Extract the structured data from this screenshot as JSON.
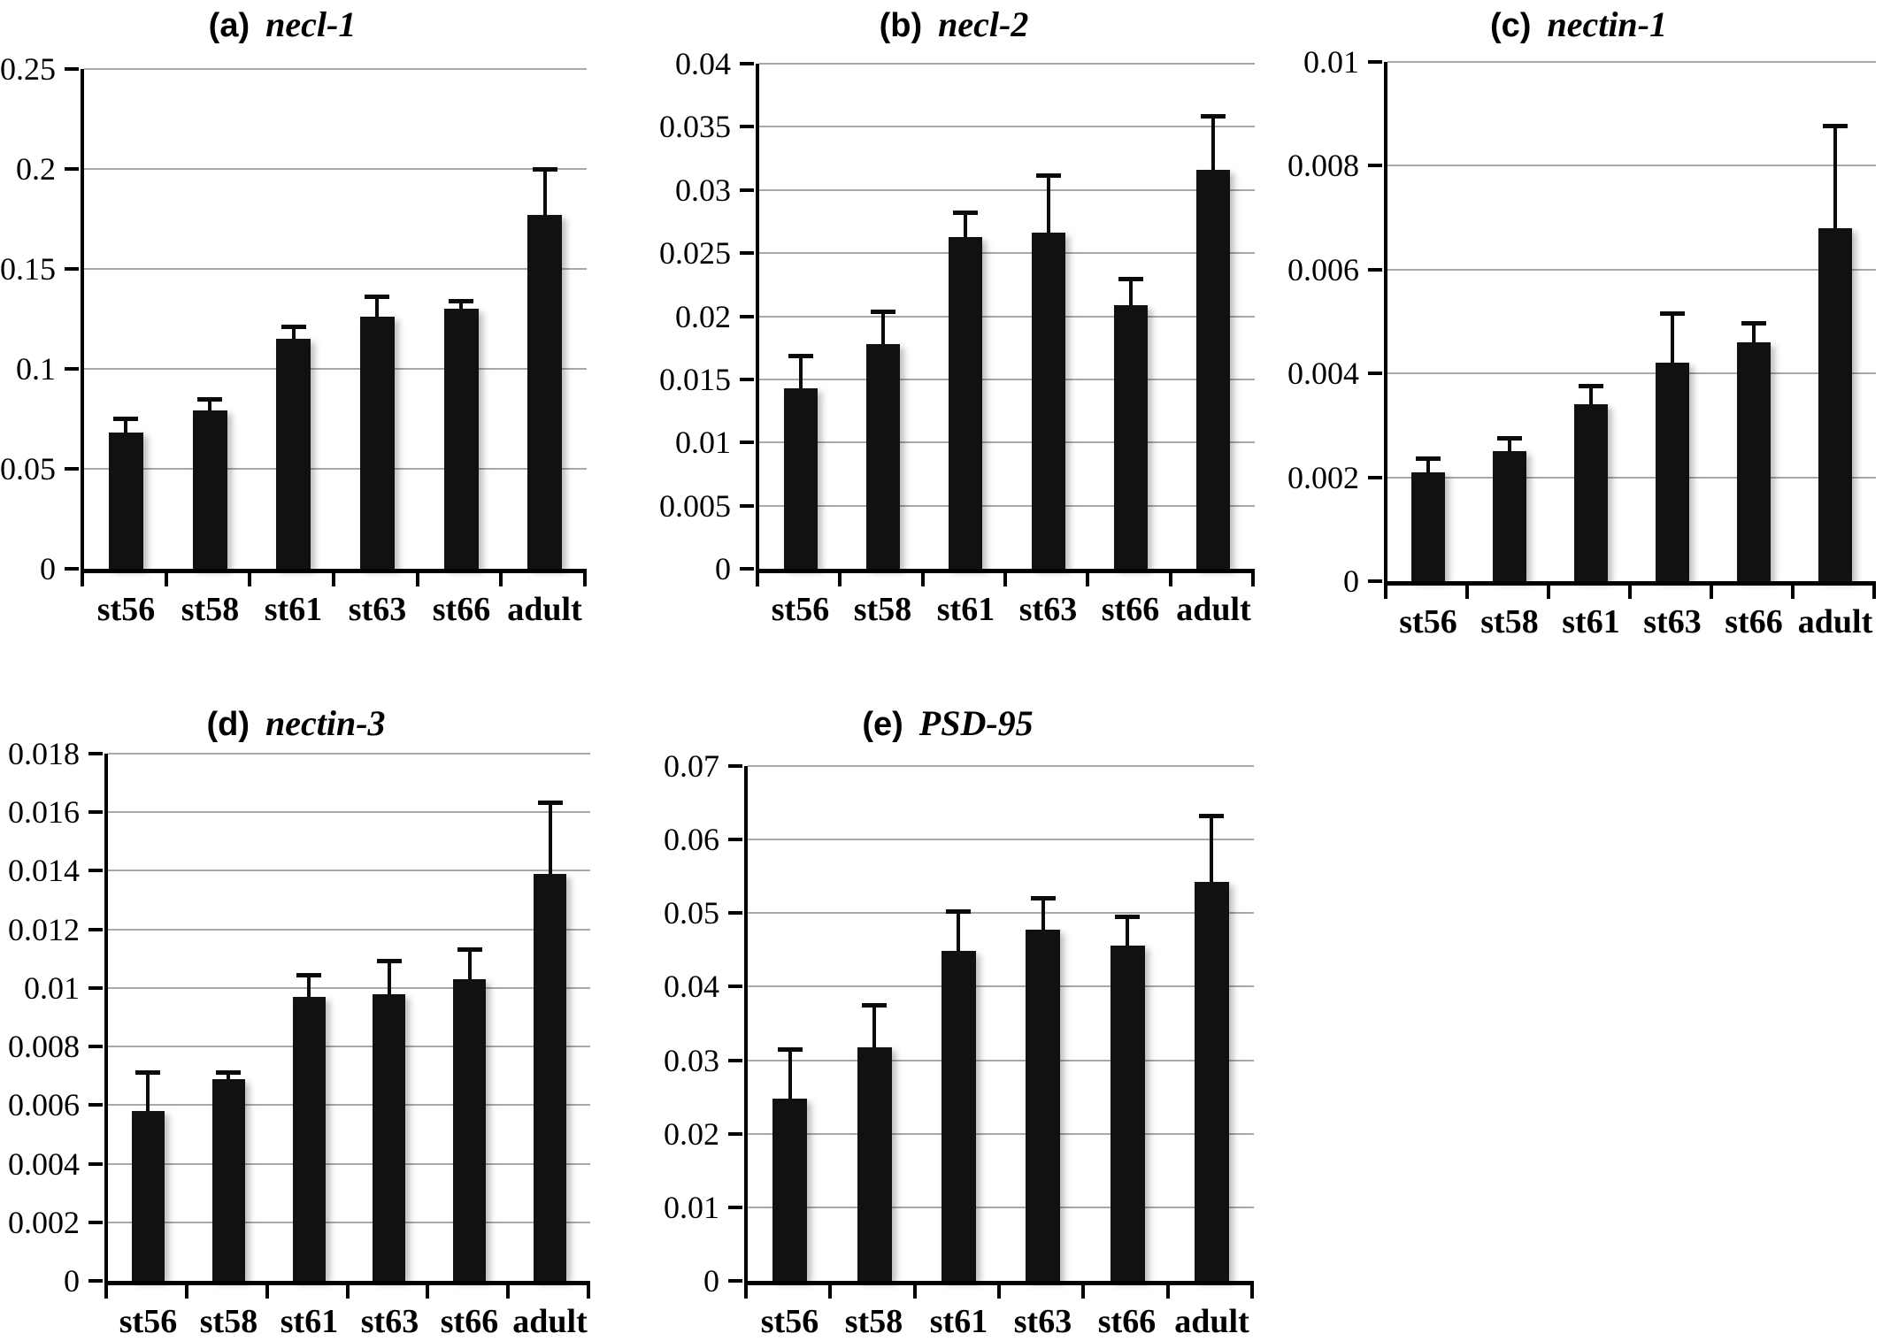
{
  "figure": {
    "style": {
      "bar_color": "#111111",
      "gridline_color": "#a8a8a8",
      "axis_color": "#000000",
      "text_color": "#000000"
    }
  },
  "chart_data": [
    {
      "panel": "(a)",
      "title": "necl-1",
      "type": "bar",
      "categories": [
        "st56",
        "st58",
        "st61",
        "st63",
        "st66",
        "adult"
      ],
      "values": [
        0.068,
        0.079,
        0.115,
        0.126,
        0.13,
        0.177
      ],
      "error_top": [
        0.076,
        0.086,
        0.122,
        0.137,
        0.135,
        0.201
      ],
      "ylim": [
        0,
        0.25
      ],
      "y_step": 0.05,
      "y_ticks": [
        "0.25",
        "0.2",
        "0.15",
        "0.1",
        "0.05",
        "0"
      ],
      "xlabel": "",
      "ylabel": "",
      "grid": true,
      "legend": "none"
    },
    {
      "panel": "(b)",
      "title": "necl-2",
      "type": "bar",
      "categories": [
        "st56",
        "st58",
        "st61",
        "st63",
        "st66",
        "adult"
      ],
      "values": [
        0.0143,
        0.0178,
        0.0263,
        0.0266,
        0.0209,
        0.0316
      ],
      "error_top": [
        0.017,
        0.0205,
        0.0284,
        0.0313,
        0.0231,
        0.036
      ],
      "ylim": [
        0,
        0.04
      ],
      "y_step": 0.005,
      "y_ticks": [
        "0.04",
        "0.035",
        "0.03",
        "0.025",
        "0.02",
        "0.015",
        "0.01",
        "0.005",
        "0"
      ],
      "xlabel": "",
      "ylabel": "",
      "grid": true,
      "legend": "none"
    },
    {
      "panel": "(c)",
      "title": "nectin-1",
      "type": "bar",
      "categories": [
        "st56",
        "st58",
        "st61",
        "st63",
        "st66",
        "adult"
      ],
      "values": [
        0.0021,
        0.0025,
        0.0034,
        0.0042,
        0.0046,
        0.0068
      ],
      "error_top": [
        0.0024,
        0.0028,
        0.0038,
        0.0052,
        0.005,
        0.0088
      ],
      "ylim": [
        0,
        0.01
      ],
      "y_step": 0.002,
      "y_ticks": [
        "0.01",
        "0.008",
        "0.006",
        "0.004",
        "0.002",
        "0"
      ],
      "xlabel": "",
      "ylabel": "",
      "grid": true,
      "legend": "none"
    },
    {
      "panel": "(d)",
      "title": "nectin-3",
      "type": "bar",
      "categories": [
        "st56",
        "st58",
        "st61",
        "st63",
        "st66",
        "adult"
      ],
      "values": [
        0.0058,
        0.0069,
        0.0097,
        0.0098,
        0.0103,
        0.0139
      ],
      "error_top": [
        0.0072,
        0.0072,
        0.0105,
        0.011,
        0.0114,
        0.0164
      ],
      "ylim": [
        0,
        0.018
      ],
      "y_step": 0.002,
      "y_ticks": [
        "0.018",
        "0.016",
        "0.014",
        "0.012",
        "0.01",
        "0.008",
        "0.006",
        "0.004",
        "0.002",
        "0"
      ],
      "xlabel": "",
      "ylabel": "",
      "grid": true,
      "legend": "none"
    },
    {
      "panel": "(e)",
      "title": "PSD-95",
      "type": "bar",
      "categories": [
        "st56",
        "st58",
        "st61",
        "st63",
        "st66",
        "adult"
      ],
      "values": [
        0.0248,
        0.0318,
        0.0449,
        0.0478,
        0.0456,
        0.0542
      ],
      "error_top": [
        0.0318,
        0.0378,
        0.0505,
        0.0523,
        0.0498,
        0.0635
      ],
      "ylim": [
        0,
        0.07
      ],
      "y_step": 0.01,
      "y_ticks": [
        "0.07",
        "0.06",
        "0.05",
        "0.04",
        "0.03",
        "0.02",
        "0.01",
        "0"
      ],
      "xlabel": "",
      "ylabel": "",
      "grid": true,
      "legend": "none"
    }
  ]
}
